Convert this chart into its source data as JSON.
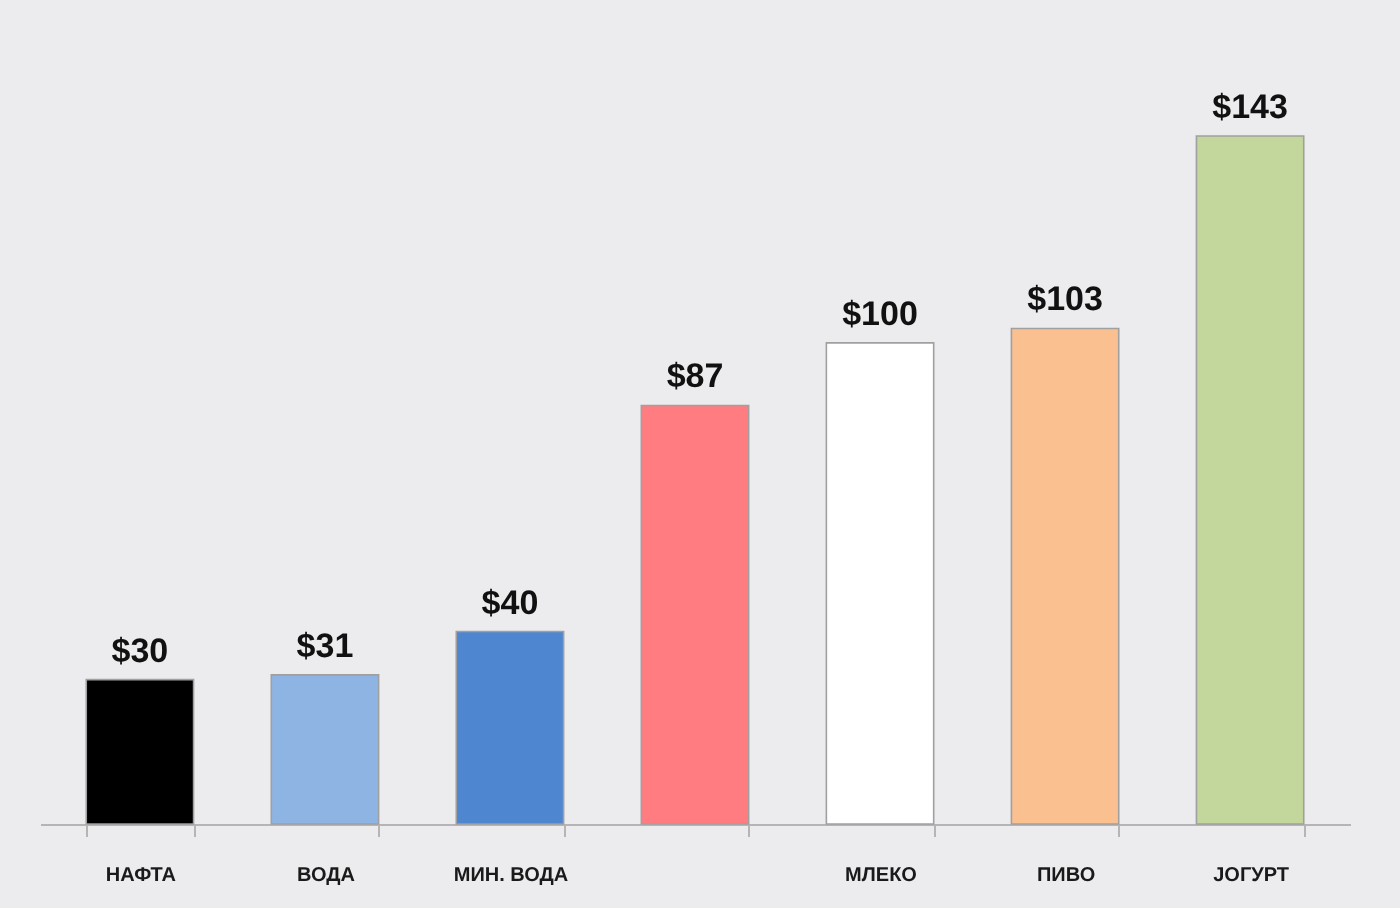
{
  "chart_data": {
    "type": "bar",
    "categories": [
      "НАФТА",
      "ВОДА",
      "МИН. ВОДА",
      null,
      "МЛЕКО",
      "ПИВО",
      "ЈОГУРТ"
    ],
    "values": [
      30,
      31,
      40,
      87,
      100,
      103,
      143
    ],
    "colors": [
      "#000000",
      "#8db4e2",
      "#4f86d0",
      "#ff7c80",
      "#ffffff",
      "#fac08f",
      "#c3d69b"
    ],
    "value_labels": [
      "$30",
      "$31",
      "$40",
      "$87",
      "$100",
      "$103",
      "$143"
    ],
    "tick_labels": "x"
  }
}
